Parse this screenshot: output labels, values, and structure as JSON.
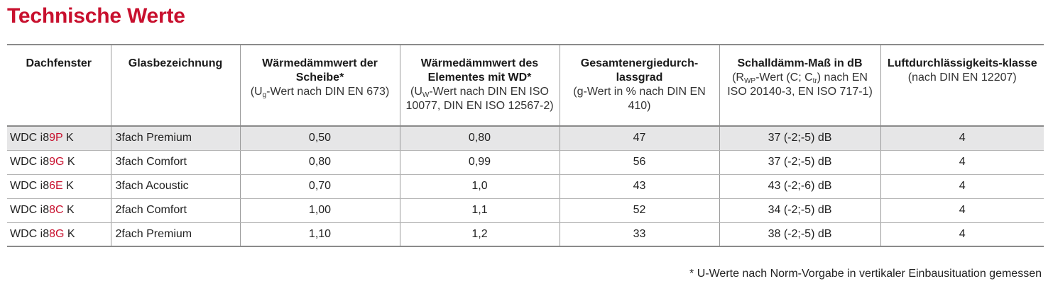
{
  "title": "Technische Werte",
  "headers": [
    {
      "bold": "Dachfenster",
      "pre": "",
      "sub": "",
      "post": ""
    },
    {
      "bold": "Glasbezeichnung",
      "pre": "",
      "sub": "",
      "post": ""
    },
    {
      "bold": "Wärmedämmwert der Scheibe*",
      "pre": "(U",
      "sub": "g",
      "post": "-Wert nach DIN EN 673)"
    },
    {
      "bold": "Wärmedämmwert des Elementes mit WD*",
      "pre": "(U",
      "sub": "W",
      "post": "-Wert nach DIN EN ISO 10077, DIN EN ISO 12567-2)"
    },
    {
      "bold": "Gesamtenergiedurch-lassgrad",
      "pre": "(g-Wert in % nach DIN EN 410)",
      "sub": "",
      "post": ""
    },
    {
      "bold": "Schalldämm-Maß in dB",
      "pre": "(R",
      "sub": "WP",
      "post": "-Wert (C; C",
      "sub2": "tr",
      "post2": ") nach EN ISO 20140-3, EN ISO 717-1)"
    },
    {
      "bold": "Luftdurchlässigkeits-klasse",
      "pre": "(nach DIN EN 12207)",
      "sub": "",
      "post": ""
    }
  ],
  "rows": [
    {
      "model_a": "WDC i8",
      "model_b": "9P",
      "model_c": " K",
      "glass": "3fach Premium",
      "ug": "0,50",
      "uw": "0,80",
      "g": "47",
      "sound": "37 (-2;-5) dB",
      "air": "4"
    },
    {
      "model_a": "WDC i8",
      "model_b": "9G",
      "model_c": " K",
      "glass": "3fach Comfort",
      "ug": "0,80",
      "uw": "0,99",
      "g": "56",
      "sound": "37 (-2;-5) dB",
      "air": "4"
    },
    {
      "model_a": "WDC i8",
      "model_b": "6E",
      "model_c": " K",
      "glass": "3fach Acoustic",
      "ug": "0,70",
      "uw": "1,0",
      "g": "43",
      "sound": "43 (-2;-6) dB",
      "air": "4"
    },
    {
      "model_a": "WDC i8",
      "model_b": "8C",
      "model_c": " K",
      "glass": "2fach Comfort",
      "ug": "1,00",
      "uw": "1,1",
      "g": "52",
      "sound": "34 (-2;-5) dB",
      "air": "4"
    },
    {
      "model_a": "WDC i8",
      "model_b": "8G",
      "model_c": " K",
      "glass": "2fach Premium",
      "ug": "1,10",
      "uw": "1,2",
      "g": "33",
      "sound": "38 (-2;-5) dB",
      "air": "4"
    }
  ],
  "footnote": "* U-Werte nach Norm-Vorgabe in vertikaler Einbausituation gemessen",
  "colors": {
    "accent": "#c8102e",
    "row_shade": "#e6e6e7"
  }
}
